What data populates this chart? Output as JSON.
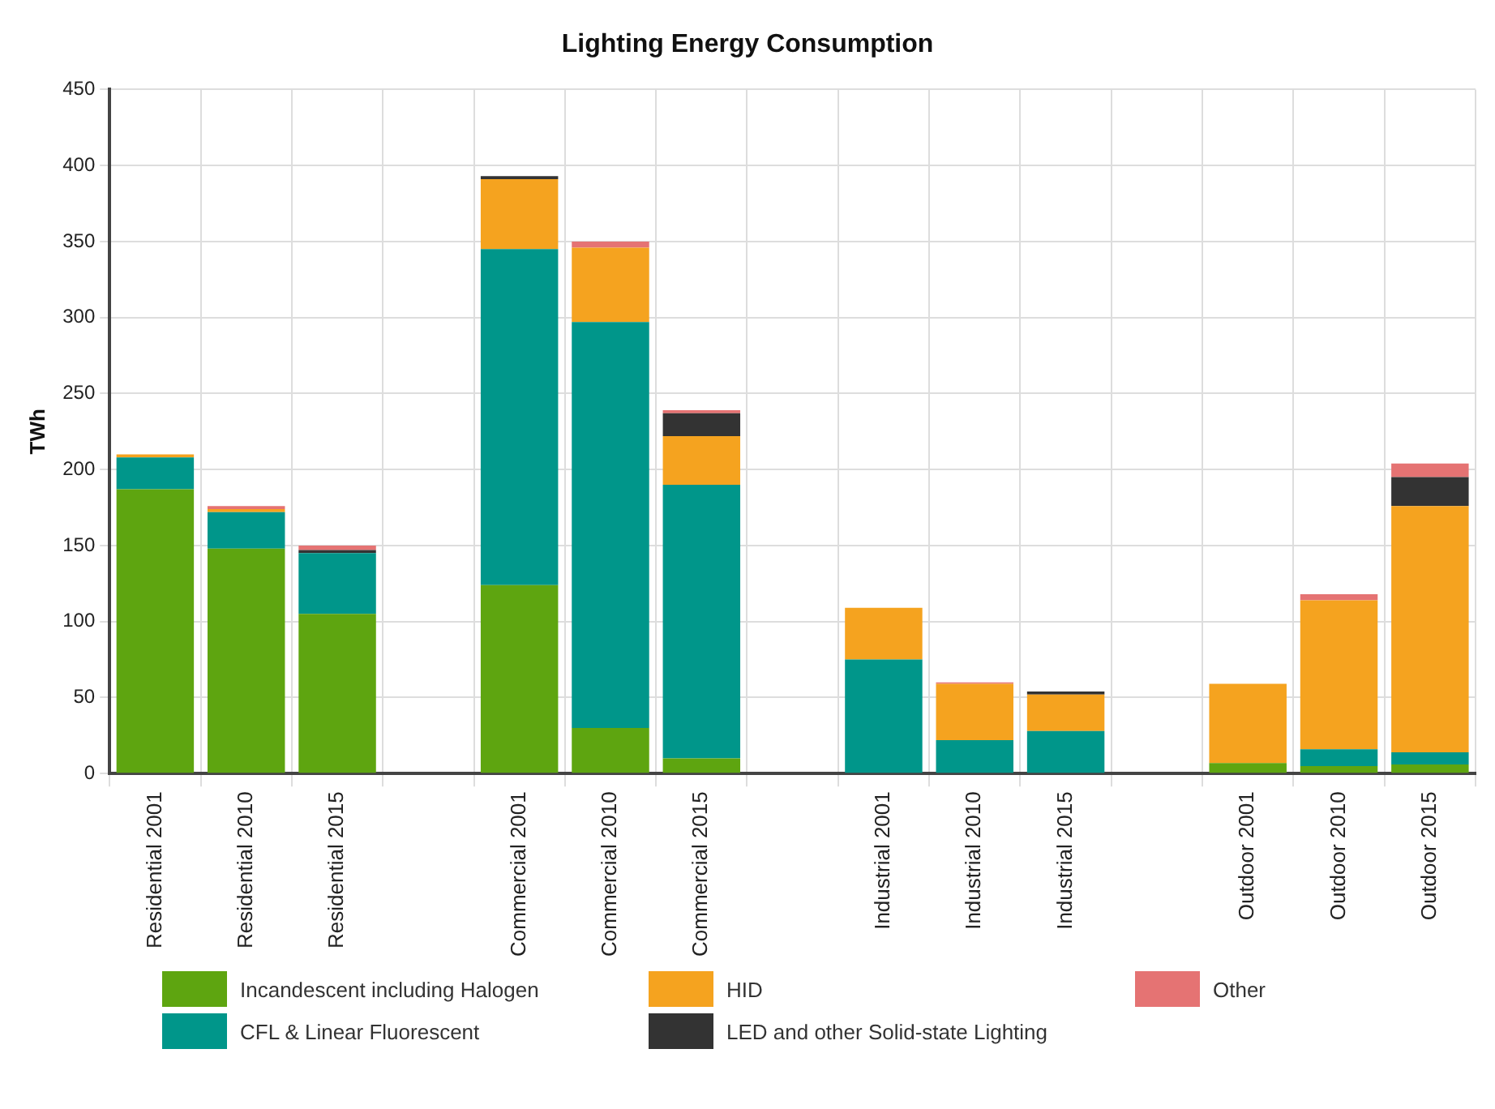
{
  "chart_data": {
    "type": "bar",
    "title": "Lighting Energy Consumption",
    "ylabel": "TWh",
    "categories": [
      "Residential 2001",
      "Residential 2010",
      "Residential 2015",
      null,
      "Commercial 2001",
      "Commercial 2010",
      "Commercial 2015",
      null,
      "Industrial 2001",
      "Industrial 2010",
      "Industrial 2015",
      null,
      "Outdoor 2001",
      "Outdoor 2010",
      "Outdoor 2015"
    ],
    "series": [
      {
        "name": "Incandescent including Halogen",
        "color": "#5ea510",
        "values": [
          187,
          148,
          105,
          null,
          124,
          30,
          10,
          null,
          0,
          0,
          0,
          null,
          7,
          5,
          6
        ]
      },
      {
        "name": "CFL & Linear Fluorescent",
        "color": "#00968a",
        "values": [
          21,
          24,
          40,
          null,
          221,
          267,
          180,
          null,
          75,
          22,
          28,
          null,
          0,
          11,
          8
        ]
      },
      {
        "name": "HID",
        "color": "#f5a31f",
        "values": [
          2,
          2,
          0,
          null,
          46,
          49,
          32,
          null,
          34,
          37,
          24,
          null,
          52,
          98,
          162
        ]
      },
      {
        "name": "LED and other Solid-state Lighting",
        "color": "#333333",
        "values": [
          0,
          0,
          2,
          null,
          2,
          0,
          15,
          null,
          0,
          0,
          2,
          null,
          0,
          0,
          19
        ]
      },
      {
        "name": "Other",
        "color": "#e57373",
        "values": [
          0,
          2,
          3,
          null,
          0,
          4,
          2,
          null,
          0,
          1,
          0,
          null,
          0,
          4,
          9
        ]
      }
    ],
    "stacked": true,
    "ylim": [
      0,
      450
    ],
    "yticks": [
      0,
      50,
      100,
      150,
      200,
      250,
      300,
      350,
      400,
      450
    ],
    "grid": true,
    "legend": "bottom"
  }
}
